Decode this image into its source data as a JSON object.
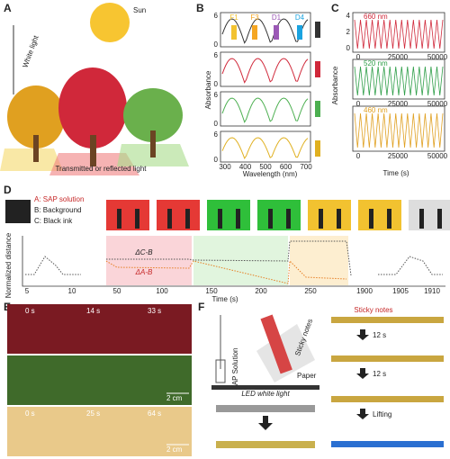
{
  "panel_a": {
    "label": "A",
    "sun": "Sun",
    "white_light": "White light",
    "transmitted": "Transmitted or reflected light"
  },
  "panel_b": {
    "label": "B",
    "peaks": [
      "F1",
      "F3",
      "D1",
      "D4"
    ],
    "y_axis": "Absorbance",
    "y_ticks": [
      6,
      0
    ],
    "x_ticks": [
      300,
      400,
      500,
      600,
      700
    ],
    "x_axis": "Wavelength (nm)"
  },
  "panel_c": {
    "label": "C",
    "wavelengths": [
      "660 nm",
      "520 nm",
      "460 nm"
    ],
    "y_axis": "Absorbance",
    "y_ticks": [
      4,
      2,
      0
    ],
    "x_ticks": [
      0,
      25000,
      50000
    ],
    "x_axis": "Time (s)"
  },
  "panel_d": {
    "label": "D",
    "legend": [
      "A: SAP solution",
      "B: Background",
      "C: Black ink"
    ],
    "y_axis": "Normalized distance",
    "delta_cb": "ΔC-B",
    "delta_ab": "ΔA-B",
    "x_ticks": [
      5,
      10,
      50,
      100,
      150,
      200,
      250,
      1900,
      1905,
      1910
    ],
    "x_axis": "Time (s)"
  },
  "panel_e": {
    "label": "E",
    "top_times": [
      "0 s",
      "14 s",
      "33 s"
    ],
    "bottom_times": [
      "0 s",
      "25 s",
      "64 s"
    ],
    "scale": "2 cm"
  },
  "panel_f": {
    "label": "F",
    "sap": "SAP Solution",
    "sticky": "Sticky notes",
    "paper": "Paper",
    "led": "LED white light",
    "steps": [
      "12 s",
      "12 s",
      "Lifting"
    ]
  }
}
